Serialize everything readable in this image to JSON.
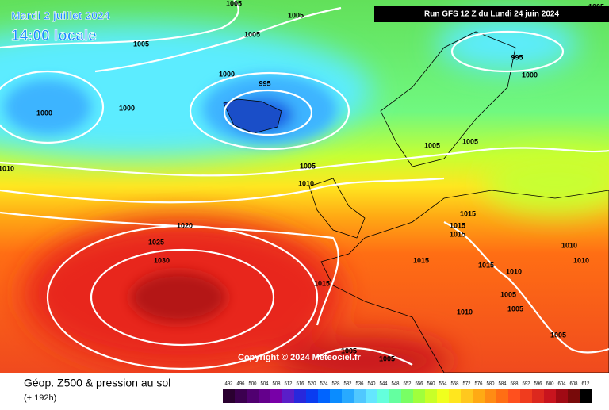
{
  "header": {
    "date": "Mardi 2 juillet 2024",
    "time": "14:00 locale",
    "run": "Run GFS 12 Z du Lundi 24 juin 2024"
  },
  "copyright": "Copyright © 2024 Meteociel.fr",
  "footer": {
    "title": "Géop. Z500 & pression au sol",
    "lead": "(+ 192h)"
  },
  "scale": {
    "labels": [
      492,
      496,
      500,
      504,
      508,
      512,
      516,
      520,
      524,
      528,
      532,
      536,
      540,
      544,
      548,
      552,
      556,
      560,
      564,
      568,
      572,
      576,
      580,
      584,
      588,
      592,
      596,
      600,
      604,
      608,
      612
    ],
    "colors": [
      "#2a0030",
      "#3c0050",
      "#500070",
      "#64008c",
      "#7800a8",
      "#5a1ec8",
      "#2828dc",
      "#0a3cf0",
      "#0064ff",
      "#0a8cff",
      "#28aaff",
      "#50c8ff",
      "#64e6ff",
      "#64ffdc",
      "#64ffa0",
      "#78ff64",
      "#a0ff3c",
      "#c8ff28",
      "#f0ff1e",
      "#ffe61e",
      "#ffc81e",
      "#ffaa14",
      "#ff8c14",
      "#ff6e14",
      "#ff501e",
      "#f03c1e",
      "#dc281e",
      "#c8141e",
      "#a00a14",
      "#780a0a",
      "#000000"
    ]
  },
  "isobar_labels": [
    1005,
    1005,
    1005,
    1005,
    1000,
    995,
    1000,
    1000,
    995,
    1000,
    1005,
    1005,
    1005,
    1010,
    1010,
    1020,
    1025,
    1030,
    1015,
    1015,
    1015,
    1015,
    1015,
    1015,
    1010,
    1005,
    1005,
    1010,
    1005,
    1005,
    1005,
    1005,
    1010,
    1010
  ]
}
